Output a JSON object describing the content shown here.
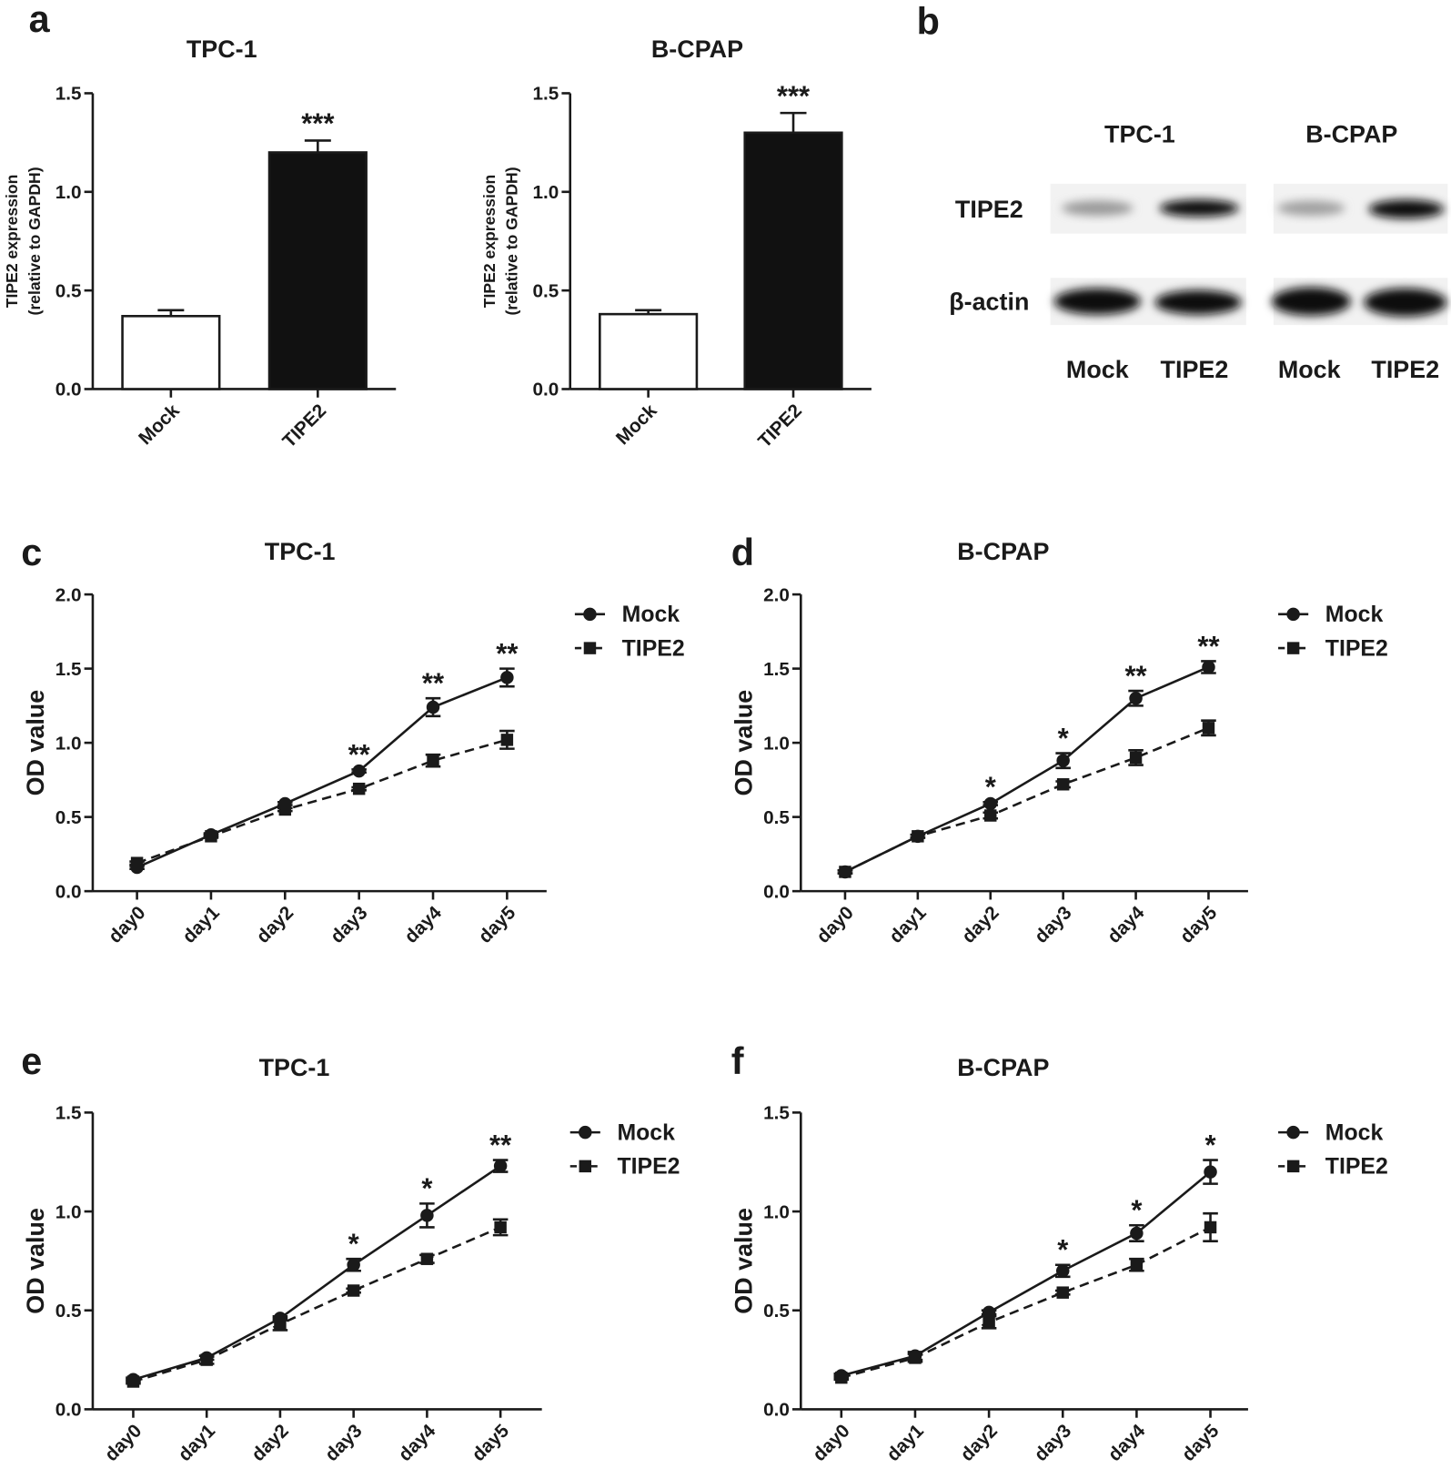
{
  "panels": [
    "a",
    "b",
    "c",
    "d",
    "e",
    "f"
  ],
  "blot": {
    "cell_lines": [
      "TPC-1",
      "B-CPAP"
    ],
    "proteins": [
      "TIPE2",
      "β-actin"
    ],
    "lanes": [
      "Mock",
      "TIPE2",
      "Mock",
      "TIPE2"
    ]
  },
  "chart_data": [
    {
      "type": "bar",
      "title": "TPC-1",
      "ylabel_lines": [
        "TIPE2 expression",
        "(relative to GAPDH)"
      ],
      "categories": [
        "Mock",
        "TIPE2"
      ],
      "values": [
        0.37,
        1.2
      ],
      "errors": [
        0.03,
        0.06
      ],
      "colors": [
        "#ffffff",
        "#111111"
      ],
      "significance": [
        null,
        "***"
      ],
      "ylim": [
        0,
        1.5
      ],
      "yticks": [
        {
          "value": 0,
          "label": "0.0"
        },
        {
          "value": 0.5,
          "label": "0.5"
        },
        {
          "value": 1,
          "label": "1.0"
        },
        {
          "value": 1.5,
          "label": "1.5"
        }
      ]
    },
    {
      "type": "bar",
      "title": "B-CPAP",
      "ylabel_lines": [
        "TIPE2 expression",
        "(relative to GAPDH)"
      ],
      "categories": [
        "Mock",
        "TIPE2"
      ],
      "values": [
        0.38,
        1.3
      ],
      "errors": [
        0.02,
        0.1
      ],
      "colors": [
        "#ffffff",
        "#111111"
      ],
      "significance": [
        null,
        "***"
      ],
      "ylim": [
        0,
        1.5
      ],
      "yticks": [
        {
          "value": 0,
          "label": "0.0"
        },
        {
          "value": 0.5,
          "label": "0.5"
        },
        {
          "value": 1,
          "label": "1.0"
        },
        {
          "value": 1.5,
          "label": "1.5"
        }
      ]
    },
    {
      "type": "line",
      "title": "TPC-1",
      "ylabel": "OD value",
      "categories": [
        "day0",
        "day1",
        "day2",
        "day3",
        "day4",
        "day5"
      ],
      "series": [
        {
          "name": "Mock",
          "color": "#1a1a1a",
          "line_style": "solid",
          "marker": "circle",
          "values": [
            0.16,
            0.38,
            0.59,
            0.81,
            1.24,
            1.44
          ],
          "errors": [
            0.01,
            0.01,
            0.01,
            0.01,
            0.06,
            0.06
          ]
        },
        {
          "name": "TIPE2",
          "color": "#1a1a1a",
          "line_style": "dashed",
          "marker": "square",
          "values": [
            0.19,
            0.37,
            0.55,
            0.69,
            0.88,
            1.02
          ],
          "errors": [
            0.01,
            0.01,
            0.01,
            0.01,
            0.04,
            0.06
          ]
        }
      ],
      "significance": [
        null,
        null,
        null,
        "**",
        "**",
        "**"
      ],
      "ylim": [
        0,
        2
      ],
      "yticks": [
        {
          "value": 0,
          "label": "0.0"
        },
        {
          "value": 0.5,
          "label": "0.5"
        },
        {
          "value": 1,
          "label": "1.0"
        },
        {
          "value": 1.5,
          "label": "1.5"
        },
        {
          "value": 2,
          "label": "2.0"
        }
      ]
    },
    {
      "type": "line",
      "title": "B-CPAP",
      "ylabel": "OD value",
      "categories": [
        "day0",
        "day1",
        "day2",
        "day3",
        "day4",
        "day5"
      ],
      "series": [
        {
          "name": "Mock",
          "color": "#1a1a1a",
          "line_style": "solid",
          "marker": "circle",
          "values": [
            0.13,
            0.37,
            0.59,
            0.88,
            1.3,
            1.51
          ],
          "errors": [
            0.01,
            0.01,
            0.01,
            0.05,
            0.05,
            0.04
          ]
        },
        {
          "name": "TIPE2",
          "color": "#1a1a1a",
          "line_style": "dashed",
          "marker": "square",
          "values": [
            0.13,
            0.37,
            0.51,
            0.72,
            0.9,
            1.1
          ],
          "errors": [
            0.01,
            0.01,
            0.02,
            0.02,
            0.05,
            0.05
          ]
        }
      ],
      "significance": [
        null,
        null,
        "*",
        "*",
        "**",
        "**"
      ],
      "ylim": [
        0,
        2
      ],
      "yticks": [
        {
          "value": 0,
          "label": "0.0"
        },
        {
          "value": 0.5,
          "label": "0.5"
        },
        {
          "value": 1,
          "label": "1.0"
        },
        {
          "value": 1.5,
          "label": "1.5"
        },
        {
          "value": 2,
          "label": "2.0"
        }
      ]
    },
    {
      "type": "line",
      "title": "TPC-1",
      "ylabel": "OD value",
      "categories": [
        "day0",
        "day1",
        "day2",
        "day3",
        "day4",
        "day5"
      ],
      "series": [
        {
          "name": "Mock",
          "color": "#1a1a1a",
          "line_style": "solid",
          "marker": "circle",
          "values": [
            0.15,
            0.26,
            0.46,
            0.73,
            0.98,
            1.23
          ],
          "errors": [
            0.01,
            0.01,
            0.01,
            0.03,
            0.06,
            0.03
          ]
        },
        {
          "name": "TIPE2",
          "color": "#1a1a1a",
          "line_style": "dashed",
          "marker": "square",
          "values": [
            0.14,
            0.25,
            0.43,
            0.6,
            0.76,
            0.92
          ],
          "errors": [
            0.01,
            0.02,
            0.03,
            0.01,
            0.02,
            0.04
          ]
        }
      ],
      "significance": [
        null,
        null,
        null,
        "*",
        "*",
        "**"
      ],
      "ylim": [
        0,
        1.5
      ],
      "yticks": [
        {
          "value": 0,
          "label": "0.0"
        },
        {
          "value": 0.5,
          "label": "0.5"
        },
        {
          "value": 1,
          "label": "1.0"
        },
        {
          "value": 1.5,
          "label": "1.5"
        }
      ]
    },
    {
      "type": "line",
      "title": "B-CPAP",
      "ylabel": "OD value",
      "categories": [
        "day0",
        "day1",
        "day2",
        "day3",
        "day4",
        "day5"
      ],
      "series": [
        {
          "name": "Mock",
          "color": "#1a1a1a",
          "line_style": "solid",
          "marker": "circle",
          "values": [
            0.17,
            0.27,
            0.49,
            0.7,
            0.89,
            1.2
          ],
          "errors": [
            0.01,
            0.02,
            0.01,
            0.03,
            0.04,
            0.06
          ]
        },
        {
          "name": "TIPE2",
          "color": "#1a1a1a",
          "line_style": "dashed",
          "marker": "square",
          "values": [
            0.16,
            0.26,
            0.44,
            0.59,
            0.73,
            0.92
          ],
          "errors": [
            0.01,
            0.02,
            0.03,
            0.01,
            0.03,
            0.07
          ]
        }
      ],
      "significance": [
        null,
        null,
        null,
        "*",
        "*",
        "*"
      ],
      "ylim": [
        0,
        1.5
      ],
      "yticks": [
        {
          "value": 0,
          "label": "0.0"
        },
        {
          "value": 0.5,
          "label": "0.5"
        },
        {
          "value": 1,
          "label": "1.0"
        },
        {
          "value": 1.5,
          "label": "1.5"
        }
      ]
    }
  ]
}
